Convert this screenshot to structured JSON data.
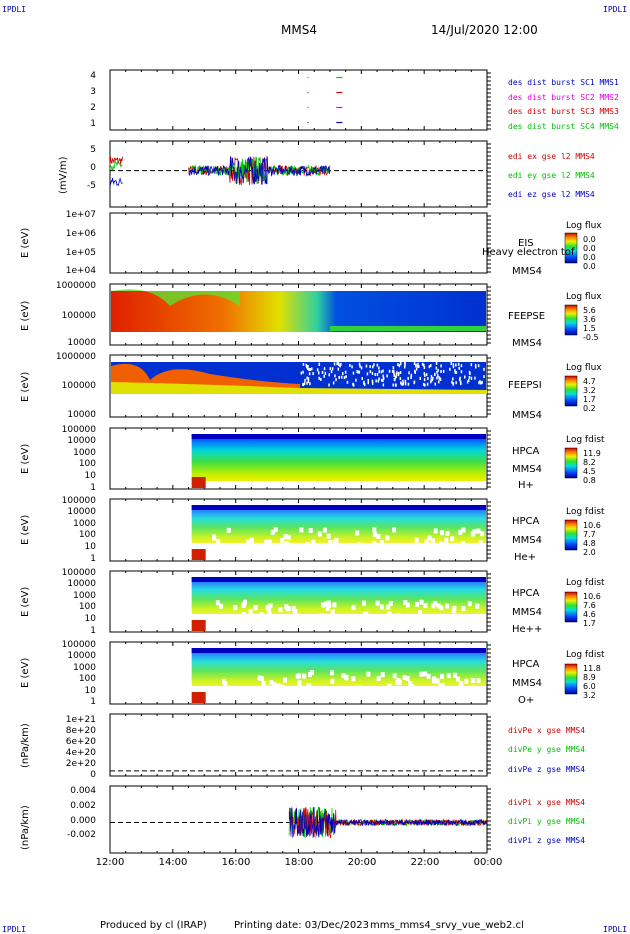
{
  "header": {
    "logo_left": "IPDLI",
    "logo_right": "IPDLI",
    "spacecraft": "MMS4",
    "datetime": "14/Jul/2020 12:00"
  },
  "footer": {
    "produced_by": "Produced by cl (IRAP)",
    "printing_date": "Printing date: 03/Dec/2023",
    "script_name": "mms_mms4_srvy_vue_web2.cl",
    "logo_left": "IPDLI",
    "logo_right": "IPDLI"
  },
  "xaxis": {
    "ticks": [
      "12:00",
      "14:00",
      "16:00",
      "18:00",
      "20:00",
      "22:00",
      "00:00"
    ],
    "range_hours": [
      12,
      24
    ]
  },
  "colors": {
    "red": "#d00000",
    "magenta": "#e000e0",
    "green": "#00c000",
    "blue": "#0000c0"
  },
  "chart_data": [
    {
      "id": "burst",
      "type": "scatter",
      "yticks": [
        "4",
        "3",
        "2",
        "1"
      ],
      "ylim": [
        0.5,
        4.5
      ],
      "legend": [
        "des dist burst SC1 MMS1",
        "des dist burst SC2 MMS2",
        "des dist burst SC3 MMS3",
        "des dist burst SC4 MMS4"
      ],
      "legend_colors": [
        "#0000c0",
        "#e000e0",
        "#d00000",
        "#00c000"
      ],
      "marks": [
        {
          "y": 4,
          "x": [
            18.3,
            19.3
          ]
        },
        {
          "y": 3,
          "x": [
            18.3,
            19.3
          ]
        },
        {
          "y": 2,
          "x": [
            18.3,
            19.3
          ]
        },
        {
          "y": 1,
          "x": [
            18.3,
            19.3
          ]
        }
      ]
    },
    {
      "id": "edi",
      "type": "line",
      "ylabel": "(mV/m)",
      "yticks": [
        "5",
        "0",
        "-5"
      ],
      "ylim": [
        -8,
        6.5
      ],
      "legend": [
        "edi ex gse l2 MMS4",
        "edi ey gse l2 MMS4",
        "edi ez gse l2 MMS4"
      ],
      "legend_colors": [
        "#d00000",
        "#00c000",
        "#0000c0"
      ],
      "reference_line": 0,
      "active_ranges": [
        [
          12.0,
          12.4
        ],
        [
          14.5,
          19.0
        ]
      ]
    },
    {
      "id": "eis",
      "type": "heatmap",
      "ylabel": "E (eV)",
      "yticks": [
        "1e+07",
        "1e+06",
        "1e+05",
        "1e+04"
      ],
      "label_lines": [
        "EIS",
        "Heavy electron tof",
        "MMS4"
      ],
      "colorbar_title": "Log flux",
      "colorbar_values": [
        "0.0",
        "0.0",
        "0.0",
        "0.0"
      ],
      "empty": true
    },
    {
      "id": "feepse",
      "type": "heatmap",
      "ylabel": "E (eV)",
      "yticks": [
        "1000000",
        "100000",
        "10000"
      ],
      "label_lines": [
        "FEEPSE",
        "MMS4"
      ],
      "colorbar_title": "Log flux",
      "colorbar_values": [
        "5.6",
        "3.6",
        "1.5",
        "-0.5"
      ]
    },
    {
      "id": "feepsi",
      "type": "heatmap",
      "ylabel": "E (eV)",
      "yticks": [
        "1000000",
        "100000",
        "10000"
      ],
      "label_lines": [
        "FEEPSI",
        "MMS4"
      ],
      "colorbar_title": "Log flux",
      "colorbar_values": [
        "4.7",
        "3.2",
        "1.7",
        "0.2"
      ]
    },
    {
      "id": "hpca_h",
      "type": "heatmap",
      "ylabel": "E (eV)",
      "yticks": [
        "100000",
        "10000",
        "1000",
        "100",
        "10",
        "1"
      ],
      "label_lines": [
        "HPCA",
        "MMS4",
        "H+"
      ],
      "colorbar_title": "Log fdist",
      "colorbar_values": [
        "11.9",
        "8.2",
        "4.5",
        "0.8"
      ],
      "start_hour": 14.6
    },
    {
      "id": "hpca_he",
      "type": "heatmap",
      "ylabel": "E (eV)",
      "yticks": [
        "100000",
        "10000",
        "1000",
        "100",
        "10",
        "1"
      ],
      "label_lines": [
        "HPCA",
        "MMS4",
        "He+"
      ],
      "colorbar_title": "Log fdist",
      "colorbar_values": [
        "10.6",
        "7.7",
        "4.8",
        "2.0"
      ],
      "start_hour": 14.6
    },
    {
      "id": "hpca_hepp",
      "type": "heatmap",
      "ylabel": "E (eV)",
      "yticks": [
        "100000",
        "10000",
        "1000",
        "100",
        "10",
        "1"
      ],
      "label_lines": [
        "HPCA",
        "MMS4",
        "He++"
      ],
      "colorbar_title": "Log fdist",
      "colorbar_values": [
        "10.6",
        "7.6",
        "4.6",
        "1.7"
      ],
      "start_hour": 14.6
    },
    {
      "id": "hpca_o",
      "type": "heatmap",
      "ylabel": "E (eV)",
      "yticks": [
        "100000",
        "10000",
        "1000",
        "100",
        "10",
        "1"
      ],
      "label_lines": [
        "HPCA",
        "MMS4",
        "O+"
      ],
      "colorbar_title": "Log fdist",
      "colorbar_values": [
        "11.8",
        "8.9",
        "6.0",
        "3.2"
      ],
      "start_hour": 14.6
    },
    {
      "id": "divpe",
      "type": "line",
      "ylabel": "(nPa/km)",
      "yticks": [
        "1e+21",
        "8e+20",
        "6e+20",
        "4e+20",
        "2e+20",
        "0"
      ],
      "ylim": [
        -1e+20,
        1.1e+21
      ],
      "legend": [
        "divPe x gse MMS4",
        "divPe y gse MMS4",
        "divPe z gse MMS4"
      ],
      "legend_colors": [
        "#d00000",
        "#00c000",
        "#0000c0"
      ],
      "reference_line": 0
    },
    {
      "id": "divpi",
      "type": "line",
      "ylabel": "(nPa/km)",
      "yticks": [
        "0.004",
        "0.002",
        "0.000",
        "-0.002"
      ],
      "ylim": [
        -0.0035,
        0.0042
      ],
      "legend": [
        "divPi x gse MMS4",
        "divPi y gse MMS4",
        "divPi z gse MMS4"
      ],
      "legend_colors": [
        "#d00000",
        "#00c000",
        "#0000c0"
      ],
      "reference_line": 0,
      "active_ranges": [
        [
          17.7,
          24.0
        ]
      ]
    }
  ]
}
